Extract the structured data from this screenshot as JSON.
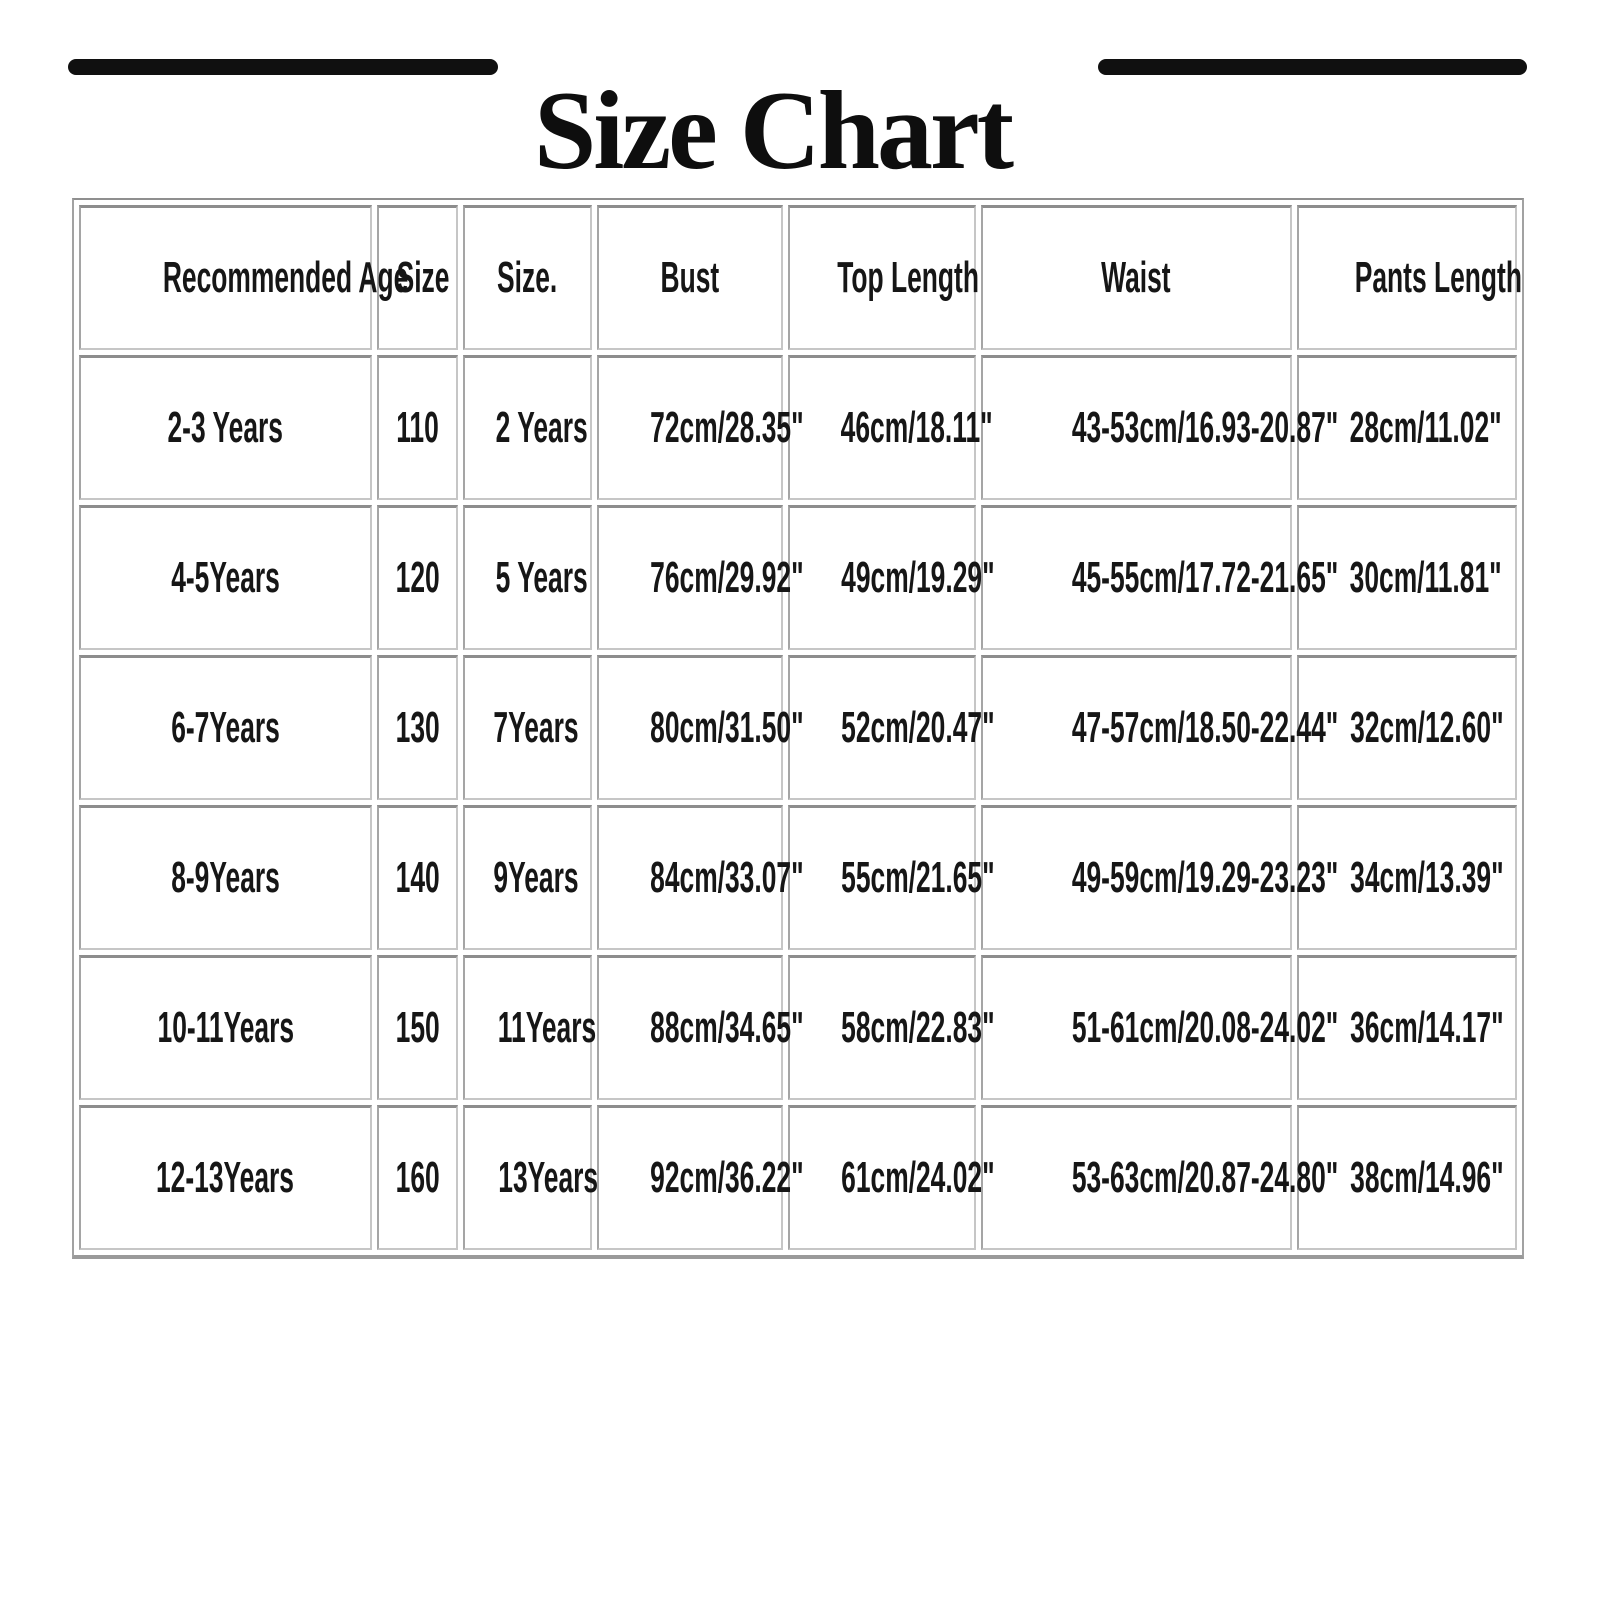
{
  "title": "Size Chart",
  "colors": {
    "title_text": "#0e0e0e",
    "divider_line": "#101010",
    "table_border": "#a2a2a2",
    "cell_border_dark": "#8d8d8d",
    "cell_border_light": "#c6c6c6",
    "cell_text": "#161616",
    "background": "#ffffff"
  },
  "table": {
    "headers": [
      "Recommended Age",
      "Size",
      "Size.",
      "Bust",
      "Top Length",
      "Waist",
      "Pants Length"
    ],
    "rows": [
      [
        "2-3 Years",
        "110",
        "2 Years",
        "72cm/28.35\"",
        "46cm/18.11\"",
        "43-53cm/16.93-20.87\"",
        "28cm/11.02\""
      ],
      [
        "4-5Years",
        "120",
        "5 Years",
        "76cm/29.92\"",
        "49cm/19.29\"",
        "45-55cm/17.72-21.65\"",
        "30cm/11.81\""
      ],
      [
        "6-7Years",
        "130",
        "7Years",
        "80cm/31.50\"",
        "52cm/20.47\"",
        "47-57cm/18.50-22.44\"",
        "32cm/12.60\""
      ],
      [
        "8-9Years",
        "140",
        "9Years",
        "84cm/33.07\"",
        "55cm/21.65\"",
        "49-59cm/19.29-23.23\"",
        "34cm/13.39\""
      ],
      [
        "10-11Years",
        "150",
        "11Years",
        "88cm/34.65\"",
        "58cm/22.83\"",
        "51-61cm/20.08-24.02\"",
        "36cm/14.17\""
      ],
      [
        "12-13Years",
        "160",
        "13Years",
        "92cm/36.22\"",
        "61cm/24.02\"",
        "53-63cm/20.87-24.80\"",
        "38cm/14.96\""
      ]
    ]
  }
}
